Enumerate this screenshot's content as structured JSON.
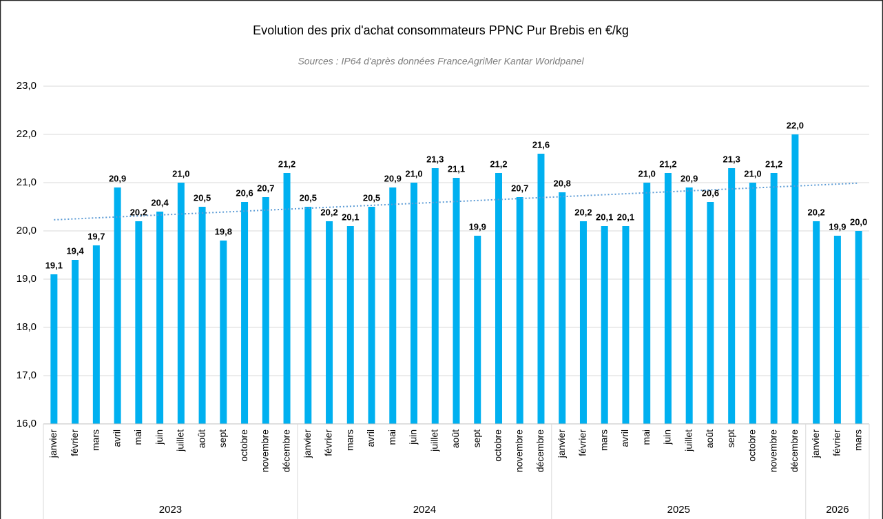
{
  "chart_data": {
    "type": "bar",
    "title": "Evolution des prix d'achat consommateurs PPNC Pur Brebis en €/kg",
    "subtitle": "Sources : IP64 d'après données FranceAgriMer Kantar Worldpanel",
    "categories": [
      "janvier",
      "février",
      "mars",
      "avril",
      "mai",
      "juin",
      "juillet",
      "août",
      "sept",
      "octobre",
      "novembre",
      "décembre",
      "janvier",
      "février",
      "mars",
      "avril",
      "mai",
      "juin",
      "juillet",
      "août",
      "sept",
      "octobre",
      "novembre",
      "décembre",
      "janvier",
      "février",
      "mars",
      "avril",
      "mai",
      "juin",
      "juillet",
      "août",
      "sept",
      "octobre",
      "novembre",
      "décembre",
      "janvier",
      "février",
      "mars"
    ],
    "groups": [
      {
        "name": "2023",
        "size": 12
      },
      {
        "name": "2024",
        "size": 12
      },
      {
        "name": "2025",
        "size": 12
      },
      {
        "name": "2026",
        "size": 3
      }
    ],
    "values": [
      19.1,
      19.4,
      19.7,
      20.9,
      20.2,
      20.4,
      21.0,
      20.5,
      19.8,
      20.6,
      20.7,
      21.2,
      20.5,
      20.2,
      20.1,
      20.5,
      20.9,
      21.0,
      21.3,
      21.1,
      19.9,
      21.2,
      20.7,
      21.6,
      20.8,
      20.2,
      20.1,
      20.1,
      21.0,
      21.2,
      20.9,
      20.6,
      21.3,
      21.0,
      21.2,
      22.0,
      20.2,
      19.9,
      20.0
    ],
    "value_labels": [
      "19,1",
      "19,4",
      "19,7",
      "20,9",
      "20,2",
      "20,4",
      "21,0",
      "20,5",
      "19,8",
      "20,6",
      "20,7",
      "21,2",
      "20,5",
      "20,2",
      "20,1",
      "20,5",
      "20,9",
      "21,0",
      "21,3",
      "21,1",
      "19,9",
      "21,2",
      "20,7",
      "21,6",
      "20,8",
      "20,2",
      "20,1",
      "20,1",
      "21,0",
      "21,2",
      "20,9",
      "20,6",
      "21,3",
      "21,0",
      "21,2",
      "22,0",
      "20,2",
      "19,9",
      "20,0"
    ],
    "color": "#00b0f0",
    "ylim": [
      16,
      23
    ],
    "yticks": [
      {
        "value": 16,
        "label": "16,0"
      },
      {
        "value": 17,
        "label": "17,0"
      },
      {
        "value": 18,
        "label": "18,0"
      },
      {
        "value": 19,
        "label": "19,0"
      },
      {
        "value": 20,
        "label": "20,0"
      },
      {
        "value": 21,
        "label": "21,0"
      },
      {
        "value": 22,
        "label": "22,0"
      },
      {
        "value": 23,
        "label": "23,0"
      }
    ],
    "grid": true,
    "trendline": {
      "values": [
        20.23,
        20.99
      ],
      "color": "#5b9bd5"
    }
  }
}
